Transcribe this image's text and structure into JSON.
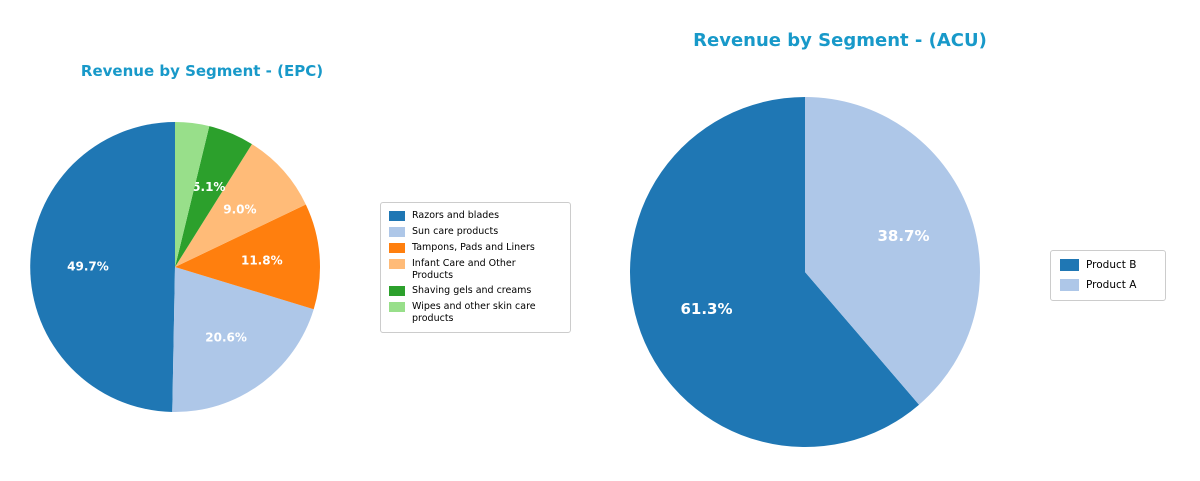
{
  "colors": {
    "title": "#1899c9",
    "legend_border": "#cccccc",
    "pct_label": "#ffffff"
  },
  "chart_data": [
    {
      "type": "pie",
      "title": "Revenue by Segment - (EPC)",
      "labels": [
        "Razors and blades",
        "Sun care products",
        "Tampons, Pads and Liners",
        "Infant Care and Other Products",
        "Shaving gels and creams",
        "Wipes and other skin care products"
      ],
      "values": [
        49.7,
        20.6,
        11.8,
        9.0,
        5.1,
        3.8
      ],
      "pct_labels": [
        "49.7%",
        "20.6%",
        "11.8%",
        "9.0%",
        "5.1%",
        ""
      ],
      "colors": [
        "#1f77b4",
        "#aec7e8",
        "#ff7f0e",
        "#ffbb78",
        "#2ca02c",
        "#98df8a"
      ],
      "start_angle": 90,
      "direction": "counterclockwise",
      "legend_position": "right"
    },
    {
      "type": "pie",
      "title": "Revenue by Segment - (ACU)",
      "labels": [
        "Product B",
        "Product A"
      ],
      "values": [
        61.3,
        38.7
      ],
      "pct_labels": [
        "61.3%",
        "38.7%"
      ],
      "colors": [
        "#1f77b4",
        "#aec7e8"
      ],
      "start_angle": 90,
      "direction": "counterclockwise",
      "legend_position": "right"
    }
  ]
}
